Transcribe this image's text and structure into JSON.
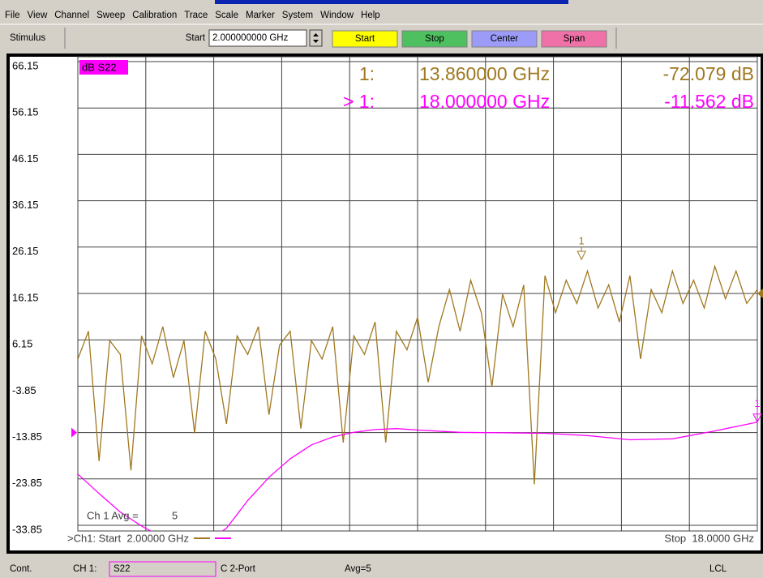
{
  "window": {
    "menu": [
      "File",
      "View",
      "Channel",
      "Sweep",
      "Calibration",
      "Trace",
      "Scale",
      "Marker",
      "System",
      "Window",
      "Help"
    ]
  },
  "toolbar": {
    "label": "Stimulus",
    "field_label": "Start",
    "field_value": "2.000000000 GHz",
    "buttons": [
      {
        "label": "Start",
        "color": "#ffff00"
      },
      {
        "label": "Stop",
        "color": "#4fc060"
      },
      {
        "label": "Center",
        "color": "#9c9cf8"
      },
      {
        "label": "Span",
        "color": "#f070a8"
      }
    ]
  },
  "chart_data": {
    "type": "line",
    "trace_label": "dB S22",
    "xlim": [
      2,
      18
    ],
    "ylim": [
      -33.85,
      66.15
    ],
    "yticks": [
      66.15,
      56.15,
      46.15,
      36.15,
      26.15,
      16.15,
      6.15,
      -3.85,
      -13.85,
      -23.85,
      -33.85
    ],
    "x_divisions": 10,
    "grid": true,
    "series": [
      {
        "color": "#a07820",
        "reference_level": 16.15,
        "x": [
          2,
          2.25,
          2.5,
          2.75,
          3,
          3.25,
          3.5,
          3.75,
          4,
          4.25,
          4.5,
          4.75,
          5,
          5.25,
          5.5,
          5.75,
          6,
          6.25,
          6.5,
          6.75,
          7,
          7.25,
          7.5,
          7.75,
          8,
          8.25,
          8.5,
          8.75,
          9,
          9.25,
          9.5,
          9.75,
          10,
          10.25,
          10.5,
          10.75,
          11,
          11.25,
          11.5,
          11.75,
          12,
          12.25,
          12.5,
          12.75,
          13,
          13.25,
          13.5,
          13.75,
          14,
          14.25,
          14.5,
          14.75,
          15,
          15.25,
          15.5,
          15.75,
          16,
          16.25,
          16.5,
          16.75,
          17,
          17.25,
          17.5,
          17.75,
          18
        ],
        "values": [
          2,
          8,
          -20,
          6,
          3,
          -22,
          7,
          1,
          9,
          -2,
          6,
          -14,
          8,
          2,
          -12,
          7,
          3,
          9,
          -10,
          5,
          8,
          -13,
          6,
          2,
          9,
          -16,
          7,
          3,
          10,
          -16,
          8,
          4,
          11,
          -3,
          9,
          17,
          8,
          19,
          12,
          -4,
          16,
          9,
          18,
          -25,
          20,
          12,
          19,
          14,
          21,
          13,
          18,
          10,
          20,
          2,
          17,
          12,
          21,
          14,
          19,
          13,
          22,
          15,
          21,
          14,
          17
        ]
      },
      {
        "color": "#ff00ff",
        "reference_level": -13.85,
        "x": [
          2,
          2.5,
          3,
          3.5,
          4,
          4.5,
          5,
          5.5,
          6,
          6.5,
          7,
          7.5,
          8,
          8.5,
          9,
          9.5,
          10,
          11,
          12,
          13,
          14,
          15,
          16,
          17,
          18
        ],
        "values": [
          -22.8,
          -27,
          -31,
          -34,
          -36.5,
          -38,
          -37.5,
          -34.5,
          -28.5,
          -23.5,
          -19.5,
          -16.5,
          -14.8,
          -13.8,
          -13.2,
          -13,
          -13.3,
          -13.8,
          -13.9,
          -14,
          -14.5,
          -15.4,
          -15.2,
          -13.5,
          -11.6
        ]
      }
    ],
    "markers": [
      {
        "number": "1",
        "label": "1:",
        "frequency": "13.860000 GHz",
        "readout": "-72.079 dB",
        "x": 13.86,
        "y": 23.5,
        "series": 0
      },
      {
        "number": "1",
        "label": "> 1:",
        "frequency": "18.000000 GHz",
        "readout": "-11.562 dB",
        "x": 18,
        "y": -11.6,
        "series": 1
      }
    ],
    "footer": {
      "start": ">Ch1: Start  2.00000 GHz",
      "stop": "Stop  18.0000 GHz",
      "average_label": "Ch 1 Avg =",
      "average_value": 5
    }
  },
  "status_bar": {
    "mode": "Cont.",
    "channel": "CH 1:",
    "parameter": "S22",
    "port": "C 2-Port",
    "average": "Avg=5",
    "remote": "LCL"
  }
}
